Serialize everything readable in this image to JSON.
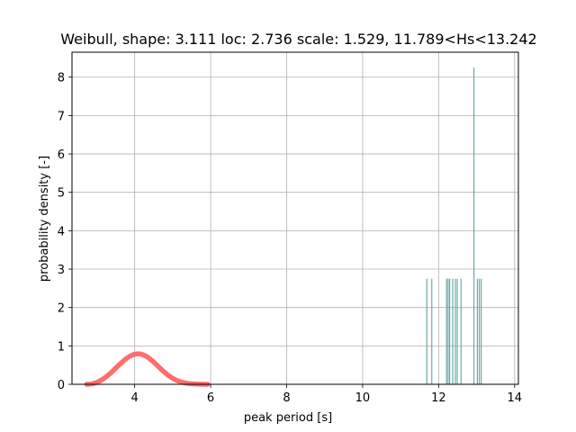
{
  "chart_data": {
    "type": "bar",
    "title": "Weibull, shape: 3.111 loc: 2.736 scale: 1.529, 11.789<Hs<13.242",
    "xlabel": "peak period [s]",
    "ylabel": "probability density [-]",
    "xlim": [
      2.35,
      14.1
    ],
    "ylim": [
      0,
      8.65
    ],
    "grid": true,
    "x_ticks": [
      4,
      6,
      8,
      10,
      12,
      14
    ],
    "y_ticks": [
      0,
      1,
      2,
      3,
      4,
      5,
      6,
      7,
      8
    ],
    "histogram": {
      "color": "#5f9ea0",
      "bars": [
        {
          "x": 11.69,
          "height": 2.75
        },
        {
          "x": 11.82,
          "height": 2.75
        },
        {
          "x": 12.21,
          "height": 2.75
        },
        {
          "x": 12.25,
          "height": 2.75
        },
        {
          "x": 12.29,
          "height": 2.75
        },
        {
          "x": 12.37,
          "height": 2.75
        },
        {
          "x": 12.44,
          "height": 2.75
        },
        {
          "x": 12.49,
          "height": 2.75
        },
        {
          "x": 12.59,
          "height": 2.75
        },
        {
          "x": 12.93,
          "height": 8.25
        },
        {
          "x": 13.02,
          "height": 2.75
        },
        {
          "x": 13.07,
          "height": 2.75
        },
        {
          "x": 13.12,
          "height": 2.75
        }
      ]
    },
    "fit_curve": {
      "distribution": "weibull_min",
      "shape": 3.111,
      "loc": 2.736,
      "scale": 1.529,
      "x_range": [
        2.736,
        5.92
      ],
      "color": "#ff6666"
    }
  }
}
